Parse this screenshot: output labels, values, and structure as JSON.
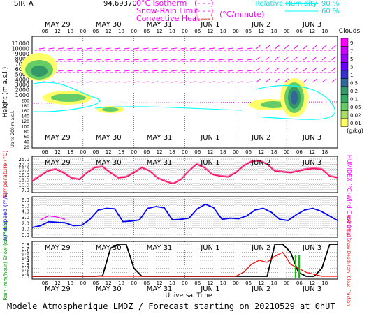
{
  "header": {
    "site": "SIRTA",
    "code": "94.69370",
    "legend_isotherm": "0°C isotherm",
    "legend_snow_rain": "Snow-Rain Limit",
    "legend_convective": "Convective Heat.",
    "legend_convective_unit": "(°C/minute)",
    "legend_rh": "Relative Humidity",
    "rh_90": "90 %",
    "rh_60": "60 %",
    "isotherm_paren": "(- - -)",
    "snow_paren": "(- - -)",
    "conv_paren": "(-—-)"
  },
  "days": [
    "MAY 29",
    "MAY 30",
    "MAY 31",
    "JUN  1",
    "JUN  2",
    "JUN  3"
  ],
  "hour_ticks": [
    "06",
    "12",
    "18",
    "00",
    "06",
    "12",
    "18",
    "00",
    "06",
    "12",
    "18",
    "00",
    "06",
    "12",
    "18",
    "00",
    "06",
    "12",
    "18",
    "00",
    "06",
    "12",
    "18"
  ],
  "footer": {
    "title": "Modele Atmospherique LMDZ / Forecast starting on 20210529 at 0hUT",
    "xaxis_label": "Universal Time"
  },
  "colors": {
    "purple": "#c000c0",
    "magenta": "#ff00ff",
    "cyan": "#00ffff",
    "red": "#ff0000",
    "blue": "#0000ff",
    "green": "#00cc00",
    "dark_green": "#006040",
    "yellow": "#ffff00",
    "pink_temp": "#ff1060",
    "humidex": "#ff69b4"
  },
  "chart_data": [
    {
      "type": "heatmap",
      "title": "Clouds",
      "ylabel": "Height (m a.s.l.)",
      "ylabel_lower": "Up to 200 m a.s.l.",
      "y_ticks": [
        "11000",
        "10000",
        "9000",
        "8000",
        "7000",
        "6000",
        "5000",
        "4000",
        "3000",
        "2000",
        "1000",
        "200",
        "180",
        "160",
        "140",
        "120",
        "100",
        "80",
        "60",
        "40",
        "20"
      ],
      "colorbar_title": "Clouds",
      "colorbar_unit": "(g/kg)",
      "colorbar_labels": [
        "9",
        "7",
        "5",
        "3",
        "1",
        "0.5",
        "0.2",
        "0.1",
        "0.05",
        "0.02",
        "0.01"
      ],
      "colorbar_colors": [
        "#ff00ff",
        "#cc00ff",
        "#9900ff",
        "#6600ff",
        "#3333cc",
        "#336699",
        "#339966",
        "#33aa66",
        "#66cc66",
        "#aadd66",
        "#ffff66"
      ]
    },
    {
      "type": "line",
      "ylabel": "Temperature (°C)",
      "ylabel_right": "HUMIDEX (°C)",
      "y_ticks": [
        "25.0",
        "22.0",
        "19.0",
        "16.0",
        "13.0",
        "10.0",
        "7.0"
      ],
      "ylim": [
        7,
        25
      ],
      "series": [
        {
          "name": "Temperature",
          "values": [
            12,
            15,
            18,
            19,
            17,
            14,
            13,
            17,
            20,
            20.5,
            17,
            14,
            14.5,
            17,
            20,
            18,
            14,
            12,
            10.5,
            13,
            18,
            22,
            20,
            16,
            15,
            14.5,
            17,
            21,
            23.5,
            24,
            22,
            18,
            17.5,
            17,
            18,
            19,
            19.5,
            19,
            15,
            14
          ]
        },
        {
          "name": "HUMIDEX",
          "values": [
            13,
            15.5,
            18.5,
            19.5,
            17.5,
            14.5,
            13.5,
            17.5,
            20.5,
            21,
            17.5,
            14.5,
            15,
            17.5,
            20.5,
            18.5,
            14.5,
            12.5,
            11,
            13.5,
            18.5,
            22.5,
            20.5,
            16.5,
            15.5,
            15,
            17.5,
            21.5,
            24,
            24.5,
            22.5,
            18.5,
            18,
            17.5,
            18.5,
            19.5,
            20,
            19.5,
            15.5,
            14.5
          ]
        }
      ]
    },
    {
      "type": "line",
      "ylabel": "Wind Speed (m/s)",
      "ylabel_right": "Wind Gust (m/s)",
      "y_ticks": [
        "6.0",
        "5.0",
        "4.0",
        "3.0",
        "2.0",
        "1.0",
        "0.0"
      ],
      "ylim": [
        0,
        6
      ],
      "series": [
        {
          "name": "Wind Speed",
          "values": [
            1.2,
            1.5,
            2.2,
            2.1,
            2.0,
            1.5,
            1.6,
            2.6,
            4.2,
            4.5,
            4.4,
            2.2,
            2.3,
            2.5,
            4.5,
            4.8,
            4.6,
            2.5,
            2.6,
            2.8,
            4.4,
            5.2,
            4.6,
            2.6,
            2.8,
            2.7,
            3.2,
            4.2,
            4.5,
            3.8,
            2.6,
            2.4,
            3.4,
            4.2,
            4.5,
            4.0,
            3.2,
            2.4
          ]
        },
        {
          "name": "Wind Gust",
          "values": [
            null,
            2.5,
            3.2,
            3.0,
            2.6,
            null,
            null,
            null,
            null,
            null,
            null,
            null,
            null,
            null,
            null,
            null,
            null,
            null,
            null,
            null,
            null,
            null,
            null,
            null,
            null,
            null,
            null,
            null,
            null,
            null,
            null,
            null,
            null,
            null,
            null,
            null,
            null,
            null
          ]
        }
      ]
    },
    {
      "type": "line",
      "ylabel": "Rain (mm/hour) Snow (cm/hour)",
      "ylabel_right": "CAPE (J/g) Snow Depth (cm) Cloud Fraction",
      "y_ticks": [
        "0.8",
        "0.7",
        "0.6",
        "0.5",
        "0.4",
        "0.3",
        "0.2",
        "0.1",
        "0.0"
      ],
      "ylim": [
        0,
        0.8
      ],
      "series": [
        {
          "name": "Cloud Fraction",
          "values": [
            0,
            0,
            0,
            0,
            0,
            0,
            0,
            0,
            0,
            0.01,
            0.7,
            0.8,
            0.8,
            0.2,
            0,
            0,
            0,
            0,
            0,
            0,
            0,
            0,
            0,
            0,
            0,
            0,
            0,
            0,
            0,
            0,
            0,
            0.8,
            0.8,
            0.6,
            0.1,
            0,
            0,
            0.2,
            0.8,
            0.8
          ]
        },
        {
          "name": "CAPE",
          "values": [
            0,
            0,
            0,
            0,
            0,
            0,
            0,
            0,
            0,
            0,
            0,
            0,
            0,
            0,
            0,
            0,
            0,
            0,
            0,
            0,
            0,
            0,
            0,
            0,
            0,
            0,
            0,
            0.1,
            0.3,
            0.4,
            0.35,
            0.5,
            0.6,
            0.3,
            0.2,
            0.1,
            0.05,
            0,
            0,
            0
          ]
        }
      ]
    }
  ]
}
